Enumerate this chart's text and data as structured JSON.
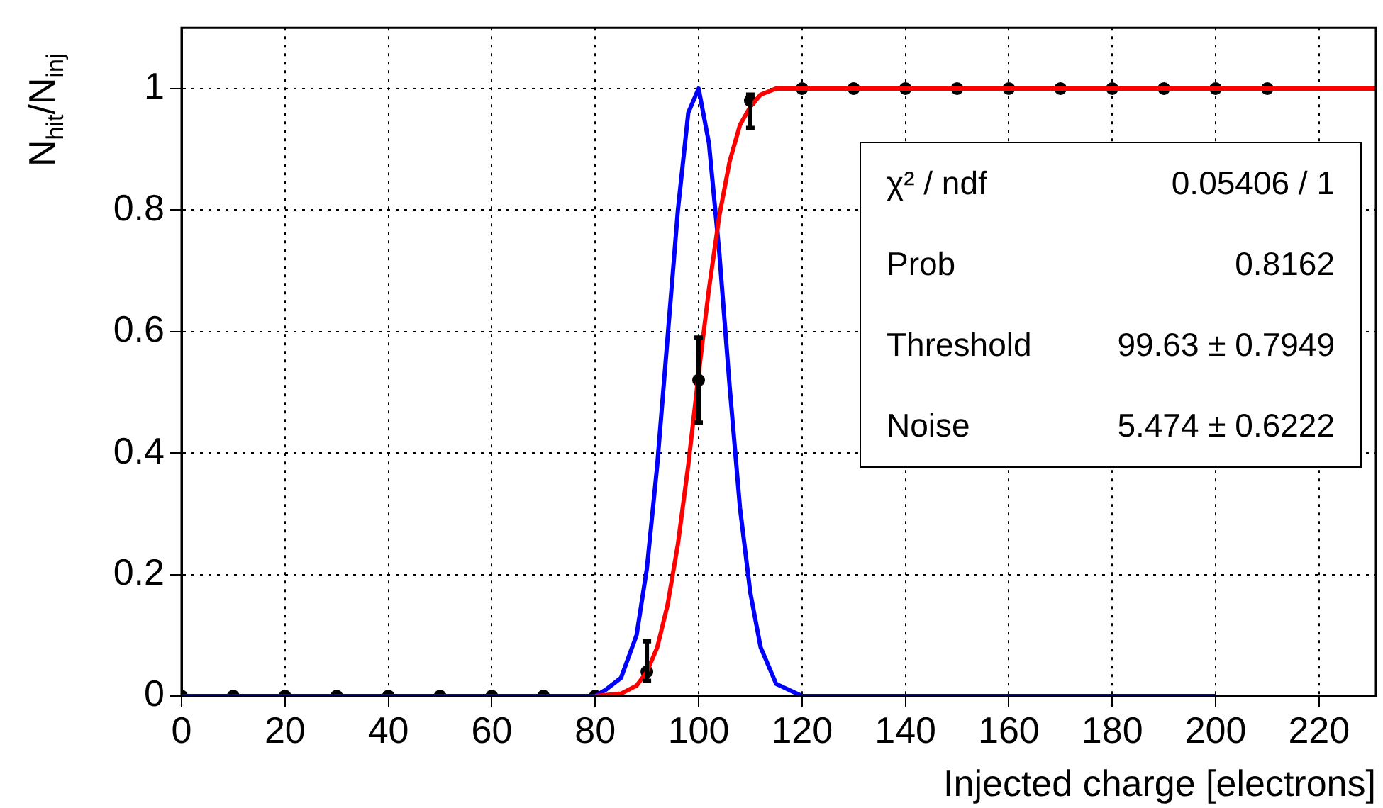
{
  "chart_data": {
    "type": "scatter",
    "xlabel": "Injected charge [electrons]",
    "ylabel": "N$_{hit}$/N$_{inj}$",
    "xlim": [
      0,
      231
    ],
    "xticks": [
      0,
      20,
      40,
      60,
      80,
      100,
      120,
      140,
      160,
      180,
      200,
      220
    ],
    "ylim": [
      0,
      1.1
    ],
    "yticks": [
      0,
      0.2,
      0.4,
      0.6,
      0.8,
      1
    ],
    "grid": true,
    "legend": false,
    "annotations": [
      "χ² / ndf",
      "0.05406 / 1",
      "Prob",
      "0.8162",
      "Threshold",
      "99.63 ± 0.7949",
      "Noise",
      "5.474 ± 0.6222"
    ],
    "series": [
      {
        "type": "line",
        "color": "#ff0000",
        "marker": "none",
        "line_style": "solid",
        "x": [
          80,
          85,
          88,
          90,
          92,
          94,
          96,
          98,
          100,
          102,
          104,
          106,
          108,
          110,
          112,
          115,
          120,
          231
        ],
        "values": [
          0,
          0.004,
          0.017,
          0.04,
          0.08,
          0.15,
          0.25,
          0.38,
          0.53,
          0.67,
          0.79,
          0.88,
          0.94,
          0.97,
          0.99,
          1,
          1,
          1
        ]
      },
      {
        "type": "line",
        "color": "#0000ff",
        "marker": "none",
        "line_style": "solid",
        "x": [
          0,
          80,
          82,
          85,
          88,
          90,
          92,
          94,
          96,
          98,
          100,
          102,
          104,
          106,
          108,
          110,
          112,
          115,
          120,
          200
        ],
        "values": [
          0,
          0,
          0.01,
          0.03,
          0.1,
          0.21,
          0.38,
          0.59,
          0.8,
          0.96,
          1,
          0.91,
          0.73,
          0.51,
          0.31,
          0.17,
          0.08,
          0.02,
          0,
          0
        ]
      },
      {
        "color": "#000000",
        "marker": "circle",
        "x": [
          0,
          10,
          20,
          30,
          40,
          50,
          60,
          70,
          80,
          90,
          100,
          110,
          120,
          130,
          140,
          150,
          160,
          170,
          180,
          190,
          200,
          210
        ],
        "values": [
          0,
          0,
          0,
          0,
          0,
          0,
          0,
          0,
          0,
          0.04,
          0.52,
          0.98,
          1,
          1,
          1,
          1,
          1,
          1,
          1,
          1,
          1,
          1
        ],
        "errors": [
          null,
          null,
          null,
          null,
          null,
          null,
          null,
          null,
          null,
          [
            0.025,
            0.09
          ],
          [
            0.45,
            0.59
          ],
          [
            0.935,
            0.99
          ],
          null,
          null,
          null,
          null,
          null,
          null,
          null,
          null,
          null,
          null
        ]
      }
    ]
  }
}
